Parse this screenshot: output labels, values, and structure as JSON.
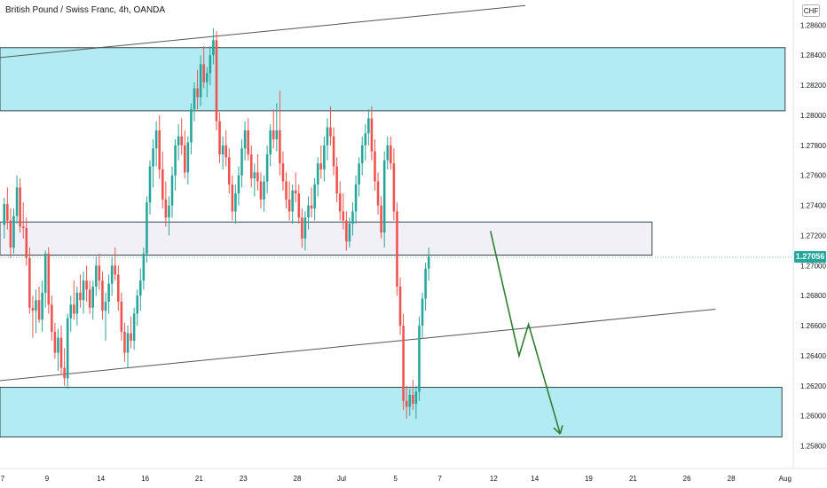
{
  "header": {
    "title": "British Pound / Swiss Franc, 4h, OANDA",
    "currency": "CHF",
    "last_price": "1.27056"
  },
  "colors": {
    "up": "#26a69a",
    "down": "#ef5350",
    "zone_fill": "#b2ebf2",
    "zone_stroke": "#37474f",
    "range_fill": "#f0f0f6",
    "projection": "#2e7d32",
    "trendline": "#555555"
  },
  "chart_data": {
    "type": "candlestick",
    "symbol": "GBPCHF",
    "timeframe": "4h",
    "ylim": [
      1.2565,
      1.2872
    ],
    "y_ticks": [
      "1.28600",
      "1.28400",
      "1.28200",
      "1.28000",
      "1.27800",
      "1.27600",
      "1.27400",
      "1.27200",
      "1.27000",
      "1.26800",
      "1.26600",
      "1.26400",
      "1.26200",
      "1.26000",
      "1.25800"
    ],
    "y_tick_values": [
      1.286,
      1.284,
      1.282,
      1.28,
      1.278,
      1.276,
      1.274,
      1.272,
      1.27,
      1.268,
      1.266,
      1.264,
      1.262,
      1.26,
      1.258
    ],
    "x_ticks": [
      "7",
      "9",
      "14",
      "16",
      "21",
      "23",
      "28",
      "Jul",
      "5",
      "7",
      "12",
      "14",
      "19",
      "21",
      "26",
      "28",
      "Aug"
    ],
    "x_tick_bars": [
      0,
      14,
      31,
      45,
      62,
      76,
      93,
      107,
      124,
      138,
      155,
      168,
      185,
      199,
      216,
      230,
      247
    ],
    "zones": [
      {
        "name": "upper-demand-zone",
        "type": "supply",
        "bar_start": -3,
        "bar_end": 247,
        "top": 1.2845,
        "bottom": 1.2803
      },
      {
        "name": "mid-range-zone",
        "type": "range",
        "bar_start": -3,
        "bar_end": 205,
        "top": 1.2729,
        "bottom": 1.2707
      },
      {
        "name": "lower-demand-zone",
        "type": "demand",
        "bar_start": -3,
        "bar_end": 246,
        "top": 1.2619,
        "bottom": 1.2586
      }
    ],
    "trendlines": [
      {
        "name": "upper-channel-line",
        "x1": -3,
        "y1": 1.2838,
        "x2": 165,
        "y2": 1.2873
      },
      {
        "name": "lower-channel-line",
        "x1": -3,
        "y1": 1.2623,
        "x2": 225,
        "y2": 1.2671
      }
    ],
    "projection": {
      "points": [
        [
          154,
          1.2723
        ],
        [
          163,
          1.264
        ],
        [
          166,
          1.2661
        ],
        [
          176,
          1.2588
        ]
      ]
    },
    "last_price": 1.27056,
    "ohlc": [
      [
        1.2727,
        1.2745,
        1.2718,
        1.2741
      ],
      [
        1.2741,
        1.2752,
        1.2724,
        1.273
      ],
      [
        1.273,
        1.2738,
        1.2705,
        1.2712
      ],
      [
        1.2712,
        1.2738,
        1.2708,
        1.2733
      ],
      [
        1.2733,
        1.276,
        1.2728,
        1.2752
      ],
      [
        1.2752,
        1.2758,
        1.2722,
        1.2726
      ],
      [
        1.2726,
        1.2742,
        1.2718,
        1.2725
      ],
      [
        1.2725,
        1.2732,
        1.27,
        1.2705
      ],
      [
        1.2705,
        1.2712,
        1.2668,
        1.2672
      ],
      [
        1.2672,
        1.268,
        1.2652,
        1.267
      ],
      [
        1.267,
        1.2684,
        1.2655,
        1.2677
      ],
      [
        1.2677,
        1.2686,
        1.2662,
        1.2664
      ],
      [
        1.2664,
        1.269,
        1.2656,
        1.2682
      ],
      [
        1.2682,
        1.271,
        1.2672,
        1.2708
      ],
      [
        1.2708,
        1.2712,
        1.2668,
        1.2674
      ],
      [
        1.2674,
        1.268,
        1.265,
        1.2656
      ],
      [
        1.2656,
        1.2662,
        1.2638,
        1.2642
      ],
      [
        1.2642,
        1.2658,
        1.263,
        1.2652
      ],
      [
        1.2652,
        1.266,
        1.2628,
        1.2632
      ],
      [
        1.2632,
        1.2645,
        1.262,
        1.2625
      ],
      [
        1.2625,
        1.2668,
        1.2618,
        1.2665
      ],
      [
        1.2665,
        1.268,
        1.2656,
        1.2674
      ],
      [
        1.2674,
        1.269,
        1.2664,
        1.2668
      ],
      [
        1.2668,
        1.2686,
        1.266,
        1.2682
      ],
      [
        1.2682,
        1.2694,
        1.2672,
        1.2677
      ],
      [
        1.2677,
        1.2696,
        1.2668,
        1.269
      ],
      [
        1.269,
        1.27,
        1.2676,
        1.2684
      ],
      [
        1.2684,
        1.269,
        1.2668,
        1.2672
      ],
      [
        1.2672,
        1.269,
        1.2664,
        1.2686
      ],
      [
        1.2686,
        1.2706,
        1.268,
        1.27
      ],
      [
        1.27,
        1.2708,
        1.2684,
        1.269
      ],
      [
        1.269,
        1.2696,
        1.2664,
        1.267
      ],
      [
        1.267,
        1.2682,
        1.265,
        1.2676
      ],
      [
        1.2676,
        1.2694,
        1.2668,
        1.2688
      ],
      [
        1.2688,
        1.2706,
        1.268,
        1.27
      ],
      [
        1.27,
        1.2712,
        1.269,
        1.2694
      ],
      [
        1.2694,
        1.27,
        1.267,
        1.2676
      ],
      [
        1.2676,
        1.2682,
        1.265,
        1.2656
      ],
      [
        1.2656,
        1.2662,
        1.2636,
        1.2642
      ],
      [
        1.2642,
        1.266,
        1.2632,
        1.2655
      ],
      [
        1.2655,
        1.2666,
        1.2645,
        1.265
      ],
      [
        1.265,
        1.2672,
        1.2644,
        1.2668
      ],
      [
        1.2668,
        1.2684,
        1.266,
        1.268
      ],
      [
        1.268,
        1.2698,
        1.267,
        1.269
      ],
      [
        1.269,
        1.2712,
        1.2684,
        1.2708
      ],
      [
        1.2708,
        1.2746,
        1.2702,
        1.2742
      ],
      [
        1.2742,
        1.277,
        1.2734,
        1.2766
      ],
      [
        1.2766,
        1.2784,
        1.2752,
        1.2778
      ],
      [
        1.2778,
        1.2796,
        1.2766,
        1.279
      ],
      [
        1.279,
        1.28,
        1.2758,
        1.2764
      ],
      [
        1.2764,
        1.2776,
        1.2738,
        1.2744
      ],
      [
        1.2744,
        1.2756,
        1.2726,
        1.2732
      ],
      [
        1.2732,
        1.2746,
        1.272,
        1.274
      ],
      [
        1.274,
        1.2766,
        1.2732,
        1.276
      ],
      [
        1.276,
        1.2784,
        1.275,
        1.278
      ],
      [
        1.278,
        1.2794,
        1.277,
        1.2786
      ],
      [
        1.2786,
        1.2798,
        1.2774,
        1.278
      ],
      [
        1.278,
        1.279,
        1.2758,
        1.2762
      ],
      [
        1.2762,
        1.2786,
        1.2754,
        1.2782
      ],
      [
        1.2782,
        1.2808,
        1.2774,
        1.2804
      ],
      [
        1.2804,
        1.2822,
        1.2796,
        1.2818
      ],
      [
        1.2818,
        1.283,
        1.2804,
        1.2812
      ],
      [
        1.2812,
        1.284,
        1.2806,
        1.2834
      ],
      [
        1.2834,
        1.2846,
        1.2818,
        1.2822
      ],
      [
        1.2822,
        1.2832,
        1.2812,
        1.2828
      ],
      [
        1.2828,
        1.2846,
        1.282,
        1.284
      ],
      [
        1.284,
        1.2858,
        1.2834,
        1.285
      ],
      [
        1.285,
        1.2856,
        1.279,
        1.2796
      ],
      [
        1.2796,
        1.2802,
        1.2768,
        1.2774
      ],
      [
        1.2774,
        1.2786,
        1.2764,
        1.278
      ],
      [
        1.278,
        1.279,
        1.2766,
        1.2772
      ],
      [
        1.2772,
        1.2778,
        1.2748,
        1.2754
      ],
      [
        1.2754,
        1.276,
        1.273,
        1.2736
      ],
      [
        1.2736,
        1.2754,
        1.2728,
        1.2748
      ],
      [
        1.2748,
        1.2766,
        1.274,
        1.276
      ],
      [
        1.276,
        1.2784,
        1.2752,
        1.2778
      ],
      [
        1.2778,
        1.2796,
        1.277,
        1.279
      ],
      [
        1.279,
        1.2798,
        1.277,
        1.2774
      ],
      [
        1.2774,
        1.278,
        1.2752,
        1.2758
      ],
      [
        1.2758,
        1.2768,
        1.2746,
        1.2762
      ],
      [
        1.2762,
        1.2774,
        1.275,
        1.2756
      ],
      [
        1.2756,
        1.2762,
        1.2738,
        1.2744
      ],
      [
        1.2744,
        1.276,
        1.2736,
        1.2756
      ],
      [
        1.2756,
        1.278,
        1.2748,
        1.2774
      ],
      [
        1.2774,
        1.2794,
        1.2766,
        1.279
      ],
      [
        1.279,
        1.2804,
        1.2778,
        1.2784
      ],
      [
        1.2784,
        1.2808,
        1.2776,
        1.279
      ],
      [
        1.279,
        1.2816,
        1.276,
        1.2768
      ],
      [
        1.2768,
        1.2776,
        1.275,
        1.2756
      ],
      [
        1.2756,
        1.2762,
        1.2738,
        1.2744
      ],
      [
        1.2744,
        1.2756,
        1.273,
        1.2736
      ],
      [
        1.2736,
        1.2754,
        1.2728,
        1.275
      ],
      [
        1.275,
        1.2762,
        1.2742,
        1.2748
      ],
      [
        1.2748,
        1.2754,
        1.2728,
        1.2732
      ],
      [
        1.2732,
        1.2738,
        1.2712,
        1.2718
      ],
      [
        1.2718,
        1.2736,
        1.271,
        1.2732
      ],
      [
        1.2732,
        1.2746,
        1.2724,
        1.274
      ],
      [
        1.274,
        1.2752,
        1.2732,
        1.2738
      ],
      [
        1.2738,
        1.2758,
        1.273,
        1.2754
      ],
      [
        1.2754,
        1.2772,
        1.2746,
        1.2768
      ],
      [
        1.2768,
        1.278,
        1.2758,
        1.2764
      ],
      [
        1.2764,
        1.2786,
        1.2756,
        1.278
      ],
      [
        1.278,
        1.2798,
        1.277,
        1.2792
      ],
      [
        1.2792,
        1.2806,
        1.278,
        1.2786
      ],
      [
        1.2786,
        1.2792,
        1.276,
        1.2766
      ],
      [
        1.2766,
        1.2772,
        1.2742,
        1.2748
      ],
      [
        1.2748,
        1.2756,
        1.273,
        1.2736
      ],
      [
        1.2736,
        1.2748,
        1.2724,
        1.273
      ],
      [
        1.273,
        1.2736,
        1.271,
        1.2716
      ],
      [
        1.2716,
        1.2732,
        1.2712,
        1.2728
      ],
      [
        1.2728,
        1.2742,
        1.272,
        1.2736
      ],
      [
        1.2736,
        1.276,
        1.2728,
        1.2754
      ],
      [
        1.2754,
        1.2772,
        1.2746,
        1.2768
      ],
      [
        1.2768,
        1.2786,
        1.276,
        1.278
      ],
      [
        1.278,
        1.2794,
        1.277,
        1.2788
      ],
      [
        1.2788,
        1.2804,
        1.278,
        1.2798
      ],
      [
        1.2798,
        1.2806,
        1.277,
        1.2776
      ],
      [
        1.2776,
        1.2784,
        1.275,
        1.2756
      ],
      [
        1.2756,
        1.2762,
        1.2734,
        1.274
      ],
      [
        1.274,
        1.2746,
        1.2718,
        1.2722
      ],
      [
        1.2722,
        1.2776,
        1.2712,
        1.277
      ],
      [
        1.277,
        1.2786,
        1.2764,
        1.278
      ],
      [
        1.278,
        1.2786,
        1.2764,
        1.2768
      ],
      [
        1.2768,
        1.2778,
        1.273,
        1.2736
      ],
      [
        1.2736,
        1.2742,
        1.268,
        1.2686
      ],
      [
        1.2686,
        1.2692,
        1.2654,
        1.266
      ],
      [
        1.266,
        1.2668,
        1.2604,
        1.261
      ],
      [
        1.261,
        1.262,
        1.2598,
        1.2606
      ],
      [
        1.2606,
        1.2618,
        1.26,
        1.2614
      ],
      [
        1.2614,
        1.2624,
        1.2604,
        1.2608
      ],
      [
        1.2608,
        1.262,
        1.2598,
        1.2616
      ],
      [
        1.2616,
        1.2666,
        1.261,
        1.266
      ],
      [
        1.266,
        1.2682,
        1.2652,
        1.2678
      ],
      [
        1.2678,
        1.2702,
        1.267,
        1.2698
      ],
      [
        1.2698,
        1.2712,
        1.269,
        1.2706
      ]
    ]
  }
}
